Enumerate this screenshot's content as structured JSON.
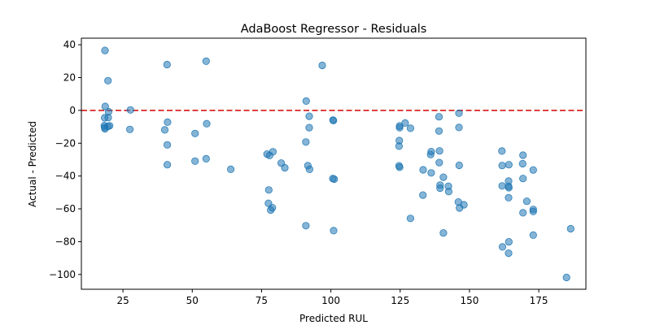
{
  "chart_data": {
    "type": "scatter",
    "title": "AdaBoost Regressor - Residuals",
    "xlabel": "Predicted RUL",
    "ylabel": "Actual - Predicted",
    "xlim": [
      10,
      192
    ],
    "ylim": [
      -109,
      44
    ],
    "xticks": [
      25,
      50,
      75,
      100,
      125,
      150,
      175
    ],
    "yticks": [
      40,
      20,
      0,
      -20,
      -40,
      -60,
      -80,
      -100
    ],
    "xtick_labels": [
      "25",
      "50",
      "75",
      "100",
      "125",
      "150",
      "175"
    ],
    "ytick_labels": [
      "40",
      "20",
      "0",
      "−20",
      "−40",
      "−60",
      "−80",
      "−100"
    ],
    "reference_line": {
      "y": 0,
      "style": "dashed",
      "color": "#d62728"
    },
    "point_color": "#1f77b4",
    "point_alpha": 0.55,
    "grid": false,
    "points": [
      [
        18.5,
        36.5
      ],
      [
        19.6,
        18.1
      ],
      [
        18.6,
        2.4
      ],
      [
        18.4,
        -4.5
      ],
      [
        19.7,
        -4.4
      ],
      [
        19.8,
        -0.8
      ],
      [
        18.3,
        -9.3
      ],
      [
        18.4,
        -10.4
      ],
      [
        18.5,
        -11.2
      ],
      [
        19.6,
        -9.7
      ],
      [
        20.2,
        -9.4
      ],
      [
        27.7,
        0.3
      ],
      [
        27.5,
        -11.6
      ],
      [
        40.9,
        27.9
      ],
      [
        41.1,
        -7.2
      ],
      [
        40.1,
        -11.9
      ],
      [
        41.0,
        -21.0
      ],
      [
        41.0,
        -33.1
      ],
      [
        55.0,
        30.0
      ],
      [
        55.2,
        -8.1
      ],
      [
        51.0,
        -14.1
      ],
      [
        55.0,
        -29.5
      ],
      [
        51.0,
        -30.9
      ],
      [
        63.9,
        -35.9
      ],
      [
        77.0,
        -26.6
      ],
      [
        77.9,
        -27.5
      ],
      [
        79.1,
        -25.2
      ],
      [
        77.6,
        -48.5
      ],
      [
        77.5,
        -56.6
      ],
      [
        78.9,
        -59.3
      ],
      [
        78.3,
        -60.7
      ],
      [
        82.1,
        -32.1
      ],
      [
        83.4,
        -35.0
      ],
      [
        91.1,
        5.7
      ],
      [
        92.2,
        -3.6
      ],
      [
        92.2,
        -10.5
      ],
      [
        91.0,
        -19.3
      ],
      [
        91.7,
        -33.7
      ],
      [
        92.3,
        -35.9
      ],
      [
        91.0,
        -70.3
      ],
      [
        96.9,
        27.4
      ],
      [
        100.8,
        -5.9
      ],
      [
        100.9,
        -6.2
      ],
      [
        100.7,
        -41.5
      ],
      [
        101.2,
        -41.9
      ],
      [
        101.0,
        -73.3
      ],
      [
        124.8,
        -9.5
      ],
      [
        124.8,
        -10.5
      ],
      [
        124.7,
        -18.4
      ],
      [
        124.6,
        -21.8
      ],
      [
        124.6,
        -33.8
      ],
      [
        124.8,
        -34.7
      ],
      [
        126.8,
        -7.7
      ],
      [
        128.7,
        -10.9
      ],
      [
        128.7,
        -65.8
      ],
      [
        133.3,
        -36.2
      ],
      [
        133.2,
        -51.6
      ],
      [
        136.2,
        -25.1
      ],
      [
        136.0,
        -26.9
      ],
      [
        136.2,
        -38.1
      ],
      [
        139.0,
        -3.9
      ],
      [
        139.0,
        -12.6
      ],
      [
        139.2,
        -24.7
      ],
      [
        139.1,
        -31.8
      ],
      [
        139.4,
        -45.5
      ],
      [
        139.4,
        -47.4
      ],
      [
        140.6,
        -40.7
      ],
      [
        140.6,
        -74.7
      ],
      [
        142.4,
        -46.2
      ],
      [
        142.5,
        -49.5
      ],
      [
        146.2,
        -1.7
      ],
      [
        146.2,
        -10.4
      ],
      [
        146.3,
        -33.5
      ],
      [
        146.0,
        -55.8
      ],
      [
        146.4,
        -59.5
      ],
      [
        148.0,
        -57.5
      ],
      [
        161.7,
        -24.8
      ],
      [
        161.8,
        -33.6
      ],
      [
        161.8,
        -46.0
      ],
      [
        161.9,
        -83.2
      ],
      [
        164.2,
        -33.1
      ],
      [
        164.1,
        -43.1
      ],
      [
        164.1,
        -46.2
      ],
      [
        164.2,
        -47.1
      ],
      [
        164.1,
        -53.2
      ],
      [
        164.2,
        -80.1
      ],
      [
        164.1,
        -87.0
      ],
      [
        169.3,
        -27.3
      ],
      [
        169.2,
        -32.5
      ],
      [
        169.3,
        -41.5
      ],
      [
        169.3,
        -62.4
      ],
      [
        170.7,
        -55.4
      ],
      [
        173.0,
        -36.3
      ],
      [
        173.0,
        -60.4
      ],
      [
        173.0,
        -61.6
      ],
      [
        173.0,
        -76.0
      ],
      [
        185.0,
        -101.8
      ],
      [
        186.5,
        -72.1
      ]
    ]
  }
}
